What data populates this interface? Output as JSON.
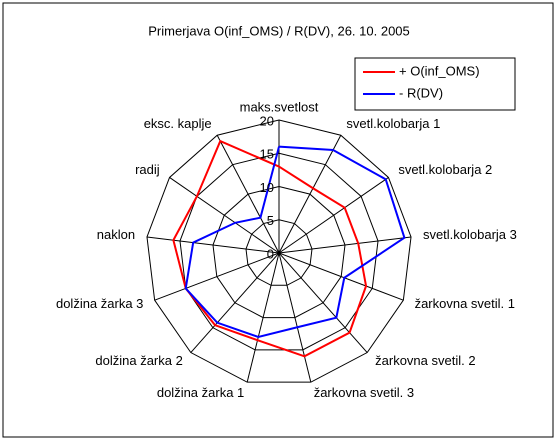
{
  "chart_data": {
    "type": "radar",
    "title": "Primerjava O(inf_OMS) / R(DV), 26. 10. 2005",
    "categories": [
      "maks.svetlost",
      "svetl.kolobarja 1",
      "svetl.kolobarja 2",
      "svetl.kolobarja 3",
      "žarkovna svetil. 1",
      "žarkovna svetil. 2",
      "žarkovna svetil. 3",
      "dolžina žarka 1",
      "dolžina žarka 2",
      "dolžina žarka 3",
      "naklon",
      "radij",
      "eksc. kaplje"
    ],
    "series": [
      {
        "name": "+ O(inf_OMS)",
        "color": "#ff0000",
        "values": [
          13,
          11,
          12,
          12,
          14,
          16,
          16,
          13.5,
          14.5,
          15,
          16,
          15,
          19
        ]
      },
      {
        "name": "- R(DV)",
        "color": "#0000ff",
        "values": [
          16,
          17.5,
          19.5,
          19,
          10.5,
          13,
          11.5,
          13,
          14,
          15,
          13,
          8,
          6
        ]
      }
    ],
    "ylim": [
      0,
      20
    ],
    "yticks": [
      0,
      5,
      10,
      15,
      20
    ],
    "grid": true,
    "legend": "top-right"
  }
}
